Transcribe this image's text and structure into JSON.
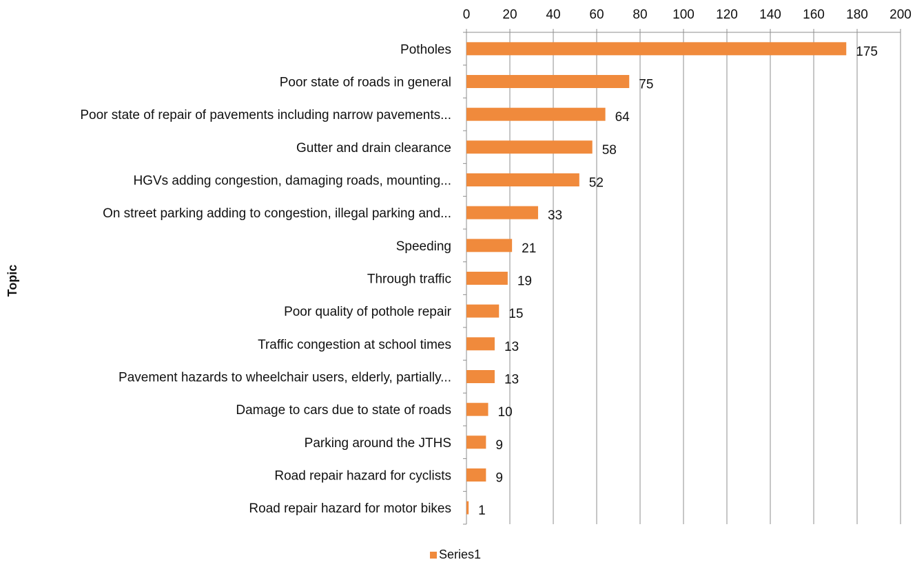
{
  "chart_data": {
    "type": "bar",
    "orientation": "horizontal",
    "title": "",
    "xlabel": "",
    "ylabel": "Topic",
    "xlim": [
      0,
      200
    ],
    "x_ticks": [
      0,
      20,
      40,
      60,
      80,
      100,
      120,
      140,
      160,
      180,
      200
    ],
    "x_axis_position": "top",
    "grid": true,
    "legend": {
      "placement": "bottom",
      "entries": [
        "Series1"
      ]
    },
    "color": "#F08A3C",
    "categories": [
      "Potholes",
      "Poor state of roads in general",
      "Poor state of repair of pavements including narrow pavements...",
      "Gutter and drain clearance",
      "HGVs adding congestion, damaging roads, mounting...",
      "On street parking adding to congestion, illegal parking and...",
      "Speeding",
      "Through traffic",
      "Poor quality of pothole repair",
      "Traffic congestion at school times",
      "Pavement hazards to wheelchair users, elderly, partially...",
      "Damage to cars due to state of roads",
      "Parking around the JTHS",
      "Road repair hazard for cyclists",
      "Road repair hazard for motor bikes"
    ],
    "series": [
      {
        "name": "Series1",
        "values": [
          175,
          75,
          64,
          58,
          52,
          33,
          21,
          19,
          15,
          13,
          13,
          10,
          9,
          9,
          1
        ]
      }
    ]
  }
}
